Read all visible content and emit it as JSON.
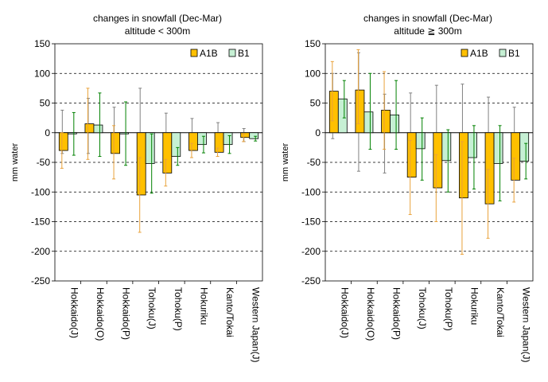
{
  "chart_data": [
    {
      "type": "bar",
      "title_lines": [
        "changes in snowfall (Dec-Mar)",
        "altitude < 300m"
      ],
      "ylabel": "mm water",
      "ylim": [
        -250,
        150
      ],
      "yticks": [
        150,
        100,
        50,
        0,
        -50,
        -100,
        -150,
        -200,
        -250
      ],
      "gridlines": [
        100,
        50,
        -50,
        -100,
        -150,
        -200
      ],
      "legend_position": "top-right",
      "categories": [
        "Hokkaido(J)",
        "Hokkaido(O)",
        "Hokkaido(P)",
        "Tohoku(J)",
        "Tohoku(P)",
        "Hokuriku",
        "Kanto/Tokai",
        "Western Japan(J)"
      ],
      "series": [
        {
          "name": "A1B",
          "color": "#ffc000",
          "error_color": "#e9a23b",
          "values": [
            -30,
            15,
            -35,
            -105,
            -68,
            -30,
            -33,
            -8
          ],
          "err_low": [
            -60,
            -45,
            -78,
            -168,
            -90,
            -42,
            -40,
            -15
          ],
          "err_high": [
            0,
            75,
            12,
            -42,
            -45,
            -18,
            -26,
            -2
          ]
        },
        {
          "name": "B1",
          "color": "#c6f0d4",
          "error_color": "#008000",
          "values": [
            -2,
            13,
            -2,
            -52,
            -40,
            -20,
            -20,
            -10
          ],
          "err_low": [
            -38,
            -40,
            -55,
            -102,
            -55,
            -34,
            -35,
            -14
          ],
          "err_high": [
            34,
            67,
            52,
            -2,
            -25,
            -6,
            -5,
            -6
          ]
        }
      ],
      "range_whiskers": {
        "color": "#808080",
        "low": [
          -35,
          -35,
          -30,
          -45,
          -35,
          -25,
          -20,
          -15
        ],
        "high": [
          38,
          58,
          43,
          75,
          33,
          24,
          17,
          7
        ]
      }
    },
    {
      "type": "bar",
      "title_lines": [
        "changes in snowfall (Dec-Mar)",
        "altitude ≧ 300m"
      ],
      "ylabel": "mm water",
      "ylim": [
        -250,
        150
      ],
      "yticks": [
        150,
        100,
        50,
        0,
        -50,
        -100,
        -150,
        -200,
        -250
      ],
      "gridlines": [
        100,
        50,
        -50,
        -100,
        -150,
        -200
      ],
      "legend_position": "top-right",
      "categories": [
        "Hokkaido(J)",
        "Hokkaido(O)",
        "Hokkaido(P)",
        "Tohoku(J)",
        "Tohoku(P)",
        "Hokuriku",
        "Kanto/Tokai",
        "Western Japan(J)"
      ],
      "series": [
        {
          "name": "A1B",
          "color": "#ffc000",
          "error_color": "#e9a23b",
          "values": [
            70,
            72,
            38,
            -75,
            -93,
            -110,
            -120,
            -80
          ],
          "err_low": [
            20,
            15,
            -28,
            -138,
            -150,
            -205,
            -178,
            -117
          ],
          "err_high": [
            120,
            140,
            103,
            -13,
            -37,
            -15,
            -62,
            -43
          ]
        },
        {
          "name": "B1",
          "color": "#c6f0d4",
          "error_color": "#008000",
          "values": [
            57,
            35,
            30,
            -27,
            -47,
            -42,
            -52,
            -48
          ],
          "err_low": [
            25,
            -28,
            -28,
            -80,
            -100,
            -95,
            -115,
            -78
          ],
          "err_high": [
            88,
            100,
            88,
            25,
            5,
            12,
            12,
            -18
          ]
        }
      ],
      "range_whiskers": {
        "color": "#808080",
        "low": [
          -10,
          -65,
          -68,
          -70,
          -80,
          -80,
          -60,
          -45
        ],
        "high": [
          100,
          135,
          65,
          67,
          80,
          82,
          60,
          43
        ]
      }
    }
  ]
}
